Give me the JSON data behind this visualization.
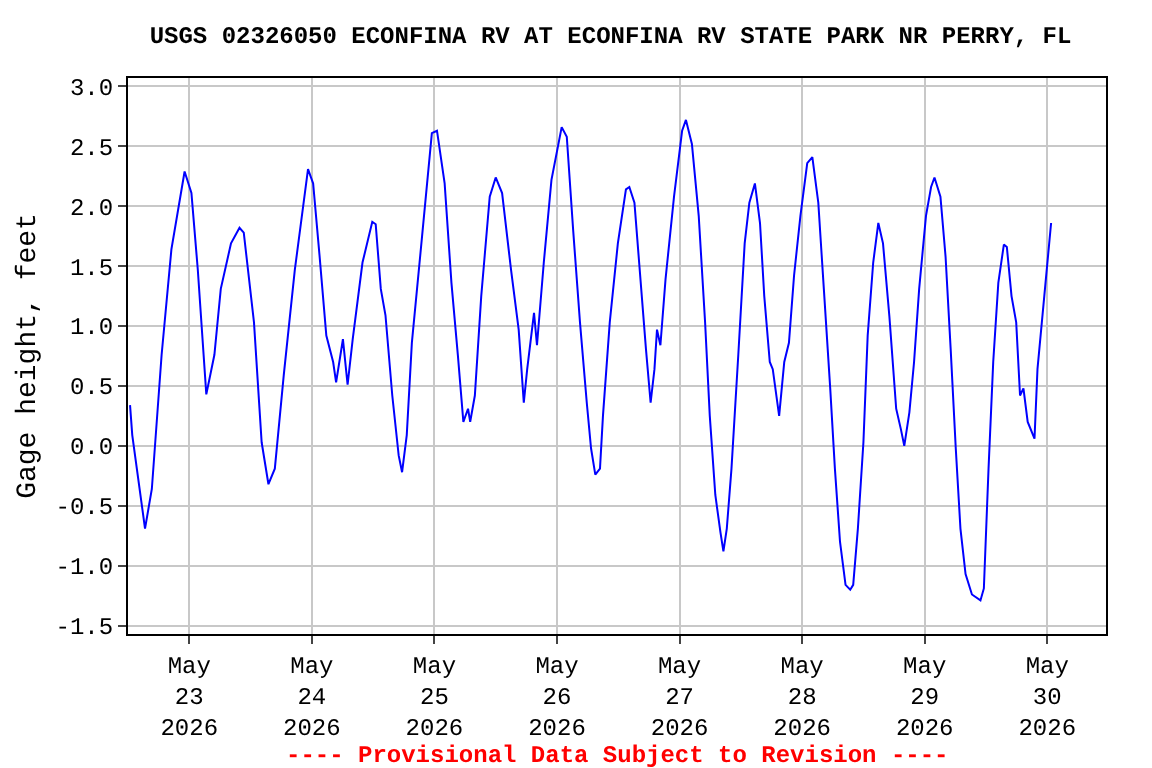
{
  "chart_data": {
    "type": "line",
    "title": "USGS 02326050 ECONFINA RV AT ECONFINA RV STATE PARK NR PERRY, FL",
    "ylabel": "Gage height, feet",
    "annotations": [
      "---- Provisional Data Subject to Revision ----"
    ],
    "x": [
      "2026-05-22T12:24",
      "2026-05-22T12:50",
      "2026-05-22T15:20",
      "2026-05-22T16:40",
      "2026-05-22T18:35",
      "2026-05-22T20:30",
      "2026-05-22T23:05",
      "2026-05-23T00:25",
      "2026-05-23T01:40",
      "2026-05-23T03:20",
      "2026-05-23T04:55",
      "2026-05-23T06:10",
      "2026-05-23T08:10",
      "2026-05-23T09:50",
      "2026-05-23T10:40",
      "2026-05-23T12:40",
      "2026-05-23T14:10",
      "2026-05-23T15:30",
      "2026-05-23T16:45",
      "2026-05-23T18:30",
      "2026-05-23T20:40",
      "2026-05-23T23:15",
      "2026-05-24T00:15",
      "2026-05-24T01:30",
      "2026-05-24T02:50",
      "2026-05-24T04:10",
      "2026-05-24T04:45",
      "2026-05-24T06:05",
      "2026-05-24T07:00",
      "2026-05-24T08:00",
      "2026-05-24T09:55",
      "2026-05-24T11:50",
      "2026-05-24T12:30",
      "2026-05-24T13:30",
      "2026-05-24T14:25",
      "2026-05-24T15:45",
      "2026-05-24T17:00",
      "2026-05-24T17:40",
      "2026-05-24T18:35",
      "2026-05-24T19:35",
      "2026-05-24T21:35",
      "2026-05-24T23:30",
      "2026-05-25T00:30",
      "2026-05-25T02:00",
      "2026-05-25T03:20",
      "2026-05-25T04:35",
      "2026-05-25T05:40",
      "2026-05-25T06:35",
      "2026-05-25T07:00",
      "2026-05-25T07:55",
      "2026-05-25T09:10",
      "2026-05-25T10:50",
      "2026-05-25T12:00",
      "2026-05-25T13:15",
      "2026-05-25T15:00",
      "2026-05-25T16:30",
      "2026-05-25T17:30",
      "2026-05-25T18:10",
      "2026-05-25T19:30",
      "2026-05-25T20:05",
      "2026-05-25T21:25",
      "2026-05-25T22:55",
      "2026-05-26T00:55",
      "2026-05-26T01:55",
      "2026-05-26T03:10",
      "2026-05-26T04:30",
      "2026-05-26T05:50",
      "2026-05-26T06:40",
      "2026-05-26T07:30",
      "2026-05-26T08:25",
      "2026-05-26T09:00",
      "2026-05-26T10:20",
      "2026-05-26T11:55",
      "2026-05-26T13:30",
      "2026-05-26T14:10",
      "2026-05-26T15:10",
      "2026-05-26T16:05",
      "2026-05-26T17:25",
      "2026-05-26T18:20",
      "2026-05-26T19:05",
      "2026-05-26T19:35",
      "2026-05-26T20:15",
      "2026-05-26T21:15",
      "2026-05-26T22:55",
      "2026-05-27T00:30",
      "2026-05-27T01:15",
      "2026-05-27T02:25",
      "2026-05-27T03:45",
      "2026-05-27T05:00",
      "2026-05-27T05:55",
      "2026-05-27T07:00",
      "2026-05-27T08:00",
      "2026-05-27T08:35",
      "2026-05-27T09:15",
      "2026-05-27T10:10",
      "2026-05-27T11:30",
      "2026-05-27T12:45",
      "2026-05-27T13:40",
      "2026-05-27T14:45",
      "2026-05-27T15:45",
      "2026-05-27T16:35",
      "2026-05-27T17:40",
      "2026-05-27T18:15",
      "2026-05-27T19:30",
      "2026-05-27T20:30",
      "2026-05-27T21:25",
      "2026-05-27T22:25",
      "2026-05-27T23:40",
      "2026-05-28T01:00",
      "2026-05-28T02:00",
      "2026-05-28T03:10",
      "2026-05-28T04:15",
      "2026-05-28T05:30",
      "2026-05-28T06:25",
      "2026-05-28T07:25",
      "2026-05-28T08:30",
      "2026-05-28T09:25",
      "2026-05-28T10:00",
      "2026-05-28T10:55",
      "2026-05-28T12:00",
      "2026-05-28T12:50",
      "2026-05-28T13:55",
      "2026-05-28T14:55",
      "2026-05-28T15:50",
      "2026-05-28T17:05",
      "2026-05-28T18:25",
      "2026-05-28T19:20",
      "2026-05-28T20:00",
      "2026-05-28T21:00",
      "2026-05-28T21:55",
      "2026-05-28T22:55",
      "2026-05-29T00:15",
      "2026-05-29T01:15",
      "2026-05-29T01:55",
      "2026-05-29T03:05",
      "2026-05-29T04:05",
      "2026-05-29T05:05",
      "2026-05-29T06:05",
      "2026-05-29T07:00",
      "2026-05-29T08:00",
      "2026-05-29T09:15",
      "2026-05-29T10:55",
      "2026-05-29T11:35",
      "2026-05-29T12:30",
      "2026-05-29T13:25",
      "2026-05-29T14:25",
      "2026-05-29T15:30",
      "2026-05-29T16:05",
      "2026-05-29T17:00",
      "2026-05-29T17:55",
      "2026-05-29T18:40",
      "2026-05-29T19:20",
      "2026-05-29T20:10",
      "2026-05-29T21:30",
      "2026-05-29T22:05",
      "2026-05-29T23:25",
      "2026-05-30T00:45"
    ],
    "series": [
      {
        "color": "#0000ff",
        "values": [
          0.34,
          0.09,
          -0.69,
          -0.36,
          0.76,
          1.64,
          2.29,
          2.11,
          1.47,
          0.43,
          0.76,
          1.31,
          1.69,
          1.82,
          1.78,
          1.03,
          0.03,
          -0.32,
          -0.19,
          0.59,
          1.47,
          2.31,
          2.19,
          1.59,
          0.92,
          0.7,
          0.53,
          0.89,
          0.51,
          0.89,
          1.53,
          1.87,
          1.85,
          1.31,
          1.09,
          0.42,
          -0.08,
          -0.22,
          0.09,
          0.86,
          1.75,
          2.61,
          2.63,
          2.19,
          1.36,
          0.76,
          0.2,
          0.31,
          0.2,
          0.42,
          1.25,
          2.08,
          2.24,
          2.11,
          1.47,
          0.97,
          0.36,
          0.64,
          1.11,
          0.84,
          1.53,
          2.22,
          2.66,
          2.58,
          1.8,
          1.03,
          0.36,
          -0.02,
          -0.24,
          -0.19,
          0.25,
          1.03,
          1.69,
          2.14,
          2.16,
          2.03,
          1.53,
          0.81,
          0.36,
          0.64,
          0.97,
          0.84,
          1.39,
          2.08,
          2.63,
          2.72,
          2.52,
          1.92,
          1.03,
          0.25,
          -0.41,
          -0.72,
          -0.88,
          -0.69,
          -0.19,
          0.76,
          1.69,
          2.03,
          2.19,
          1.86,
          1.25,
          0.7,
          0.64,
          0.25,
          0.7,
          0.86,
          1.42,
          1.92,
          2.36,
          2.41,
          2.03,
          1.31,
          0.48,
          -0.19,
          -0.8,
          -1.16,
          -1.2,
          -1.16,
          -0.69,
          0.03,
          0.92,
          1.53,
          1.86,
          1.69,
          1.08,
          0.31,
          0.14,
          0.0,
          0.28,
          0.7,
          1.31,
          1.92,
          2.16,
          2.24,
          2.08,
          1.58,
          0.81,
          -0.02,
          -0.69,
          -1.07,
          -1.24,
          -1.29,
          -1.19,
          -0.19,
          0.7,
          1.36,
          1.68,
          1.66,
          1.25,
          1.03,
          0.42,
          0.48,
          0.2,
          0.06,
          0.64,
          1.25,
          1.86
        ]
      }
    ],
    "xlim": [
      "2026-05-22T12:00",
      "2026-05-30T11:30"
    ],
    "xticks": [
      {
        "value": "2026-05-23",
        "label": "May\n23\n2026"
      },
      {
        "value": "2026-05-24",
        "label": "May\n24\n2026"
      },
      {
        "value": "2026-05-25",
        "label": "May\n25\n2026"
      },
      {
        "value": "2026-05-26",
        "label": "May\n26\n2026"
      },
      {
        "value": "2026-05-27",
        "label": "May\n27\n2026"
      },
      {
        "value": "2026-05-28",
        "label": "May\n28\n2026"
      },
      {
        "value": "2026-05-29",
        "label": "May\n29\n2026"
      },
      {
        "value": "2026-05-30",
        "label": "May\n30\n2026"
      }
    ],
    "ylim": [
      -1.57,
      3.07
    ],
    "yticks": [
      {
        "value": -1.5,
        "label": "-1.5"
      },
      {
        "value": -1,
        "label": "-1.0"
      },
      {
        "value": -0.5,
        "label": "-0.5"
      },
      {
        "value": 0,
        "label": "0.0"
      },
      {
        "value": 0.5,
        "label": "0.5"
      },
      {
        "value": 1,
        "label": "1.0"
      },
      {
        "value": 1.5,
        "label": "1.5"
      },
      {
        "value": 2,
        "label": "2.0"
      },
      {
        "value": 2.5,
        "label": "2.5"
      },
      {
        "value": 3,
        "label": "3.0"
      }
    ],
    "grid": true,
    "marker": "none",
    "line_style": "solid"
  }
}
